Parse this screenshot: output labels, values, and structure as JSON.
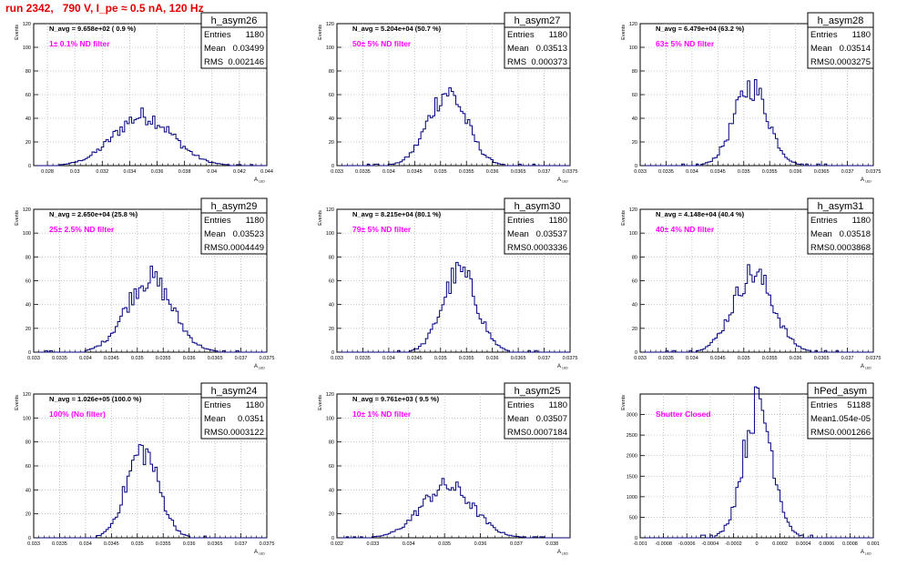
{
  "page": {
    "title": "run 2342,   790 V, I_pe ≈ 0.5 nA, 120 Hz",
    "colors": {
      "title": "#e00000",
      "histogram": "#000080",
      "note": "#ff00ff",
      "grid": "#b8b8b8"
    }
  },
  "chart_data": [
    {
      "type": "histogram",
      "name": "h_asym26",
      "nav_label": "N_avg = 9.658e+02 ( 0.9 %)",
      "note": "1± 0.1% ND filter",
      "ylabel": "Events",
      "xlabel": "A_LED",
      "xlim": [
        0.027,
        0.044
      ],
      "ylim": [
        0,
        120
      ],
      "xticks": [
        0.028,
        0.03,
        0.032,
        0.034,
        0.036,
        0.038,
        0.04,
        0.042,
        0.044
      ],
      "xtick_labels": [
        "0.028",
        "0.03",
        "0.032",
        "0.034",
        "0.036",
        "0.038",
        "0.04",
        "0.042",
        "0.044"
      ],
      "yticks": [
        0,
        20,
        40,
        60,
        80,
        100,
        120
      ],
      "stats": [
        [
          "Entries",
          "1180"
        ],
        [
          "Mean",
          "0.03499"
        ],
        [
          "RMS",
          "0.002146"
        ]
      ],
      "grid": true,
      "mean": 0.03499,
      "rms": 0.002146,
      "peak": 42
    },
    {
      "type": "histogram",
      "name": "h_asym27",
      "nav_label": "N_avg = 5.204e+04 (50.7 %)",
      "note": "50± 5% ND filter",
      "ylabel": "Events",
      "xlabel": "A_LED",
      "xlim": [
        0.033,
        0.0375
      ],
      "ylim": [
        0,
        120
      ],
      "xticks": [
        0.033,
        0.0335,
        0.034,
        0.0345,
        0.035,
        0.0355,
        0.036,
        0.0365,
        0.037,
        0.0375
      ],
      "xtick_labels": [
        "0.033",
        "0.0335",
        "0.034",
        "0.0345",
        "0.035",
        "0.0355",
        "0.036",
        "0.0365",
        "0.037",
        "0.0375"
      ],
      "yticks": [
        0,
        20,
        40,
        60,
        80,
        100,
        120
      ],
      "stats": [
        [
          "Entries",
          "1180"
        ],
        [
          "Mean",
          "0.03513"
        ],
        [
          "RMS",
          "0.000373"
        ]
      ],
      "grid": true,
      "mean": 0.03513,
      "rms": 0.000373,
      "peak": 62
    },
    {
      "type": "histogram",
      "name": "h_asym28",
      "nav_label": "N_avg = 6.479e+04 (63.2 %)",
      "note": "63± 5% ND filter",
      "ylabel": "Events",
      "xlabel": "A_LED",
      "xlim": [
        0.033,
        0.0375
      ],
      "ylim": [
        0,
        120
      ],
      "xticks": [
        0.033,
        0.0335,
        0.034,
        0.0345,
        0.035,
        0.0355,
        0.036,
        0.0365,
        0.037,
        0.0375
      ],
      "xtick_labels": [
        "0.033",
        "0.0335",
        "0.034",
        "0.0345",
        "0.035",
        "0.0355",
        "0.036",
        "0.0365",
        "0.037",
        "0.0375"
      ],
      "yticks": [
        0,
        20,
        40,
        60,
        80,
        100,
        120
      ],
      "stats": [
        [
          "Entries",
          "1180"
        ],
        [
          "Mean",
          "0.03514"
        ],
        [
          "RMS",
          "0.0003275"
        ]
      ],
      "grid": true,
      "mean": 0.03514,
      "rms": 0.0003275,
      "peak": 67
    },
    {
      "type": "histogram",
      "name": "h_asym29",
      "nav_label": "N_avg = 2.650e+04 (25.8 %)",
      "note": "25± 2.5% ND filter",
      "ylabel": "Events",
      "xlabel": "A_LED",
      "xlim": [
        0.033,
        0.0375
      ],
      "ylim": [
        0,
        120
      ],
      "xticks": [
        0.033,
        0.0335,
        0.034,
        0.0345,
        0.035,
        0.0355,
        0.036,
        0.0365,
        0.037,
        0.0375
      ],
      "xtick_labels": [
        "0.033",
        "0.0335",
        "0.034",
        "0.0345",
        "0.035",
        "0.0355",
        "0.036",
        "0.0365",
        "0.037",
        "0.0375"
      ],
      "yticks": [
        0,
        20,
        40,
        60,
        80,
        100,
        120
      ],
      "stats": [
        [
          "Entries",
          "1180"
        ],
        [
          "Mean",
          "0.03523"
        ],
        [
          "RMS",
          "0.0004449"
        ]
      ],
      "grid": true,
      "mean": 0.03523,
      "rms": 0.0004449,
      "peak": 62
    },
    {
      "type": "histogram",
      "name": "h_asym30",
      "nav_label": "N_avg = 8.215e+04 (80.1 %)",
      "note": "79± 5% ND filter",
      "ylabel": "Events",
      "xlabel": "A_LED",
      "xlim": [
        0.033,
        0.0375
      ],
      "ylim": [
        0,
        120
      ],
      "xticks": [
        0.033,
        0.0335,
        0.034,
        0.0345,
        0.035,
        0.0355,
        0.036,
        0.0365,
        0.037,
        0.0375
      ],
      "xtick_labels": [
        "0.033",
        "0.0335",
        "0.034",
        "0.0345",
        "0.035",
        "0.0355",
        "0.036",
        "0.0365",
        "0.037",
        "0.0375"
      ],
      "yticks": [
        0,
        20,
        40,
        60,
        80,
        100,
        120
      ],
      "stats": [
        [
          "Entries",
          "1180"
        ],
        [
          "Mean",
          "0.03537"
        ],
        [
          "RMS",
          "0.0003336"
        ]
      ],
      "grid": true,
      "mean": 0.03537,
      "rms": 0.0003336,
      "peak": 67
    },
    {
      "type": "histogram",
      "name": "h_asym31",
      "nav_label": "N_avg = 4.148e+04 (40.4 %)",
      "note": "40± 4% ND filter",
      "ylabel": "Events",
      "xlabel": "A_LED",
      "xlim": [
        0.033,
        0.0375
      ],
      "ylim": [
        0,
        120
      ],
      "xticks": [
        0.033,
        0.0335,
        0.034,
        0.0345,
        0.035,
        0.0355,
        0.036,
        0.0365,
        0.037,
        0.0375
      ],
      "xtick_labels": [
        "0.033",
        "0.0335",
        "0.034",
        "0.0345",
        "0.035",
        "0.0355",
        "0.036",
        "0.0365",
        "0.037",
        "0.0375"
      ],
      "yticks": [
        0,
        20,
        40,
        60,
        80,
        100,
        120
      ],
      "stats": [
        [
          "Entries",
          "1180"
        ],
        [
          "Mean",
          "0.03518"
        ],
        [
          "RMS",
          "0.0003868"
        ]
      ],
      "grid": true,
      "mean": 0.03518,
      "rms": 0.0003868,
      "peak": 66
    },
    {
      "type": "histogram",
      "name": "h_asym24",
      "nav_label": "N_avg = 1.026e+05 (100.0 %)",
      "note": "100% (No filter)",
      "ylabel": "Events",
      "xlabel": "A_LED",
      "xlim": [
        0.033,
        0.0375
      ],
      "ylim": [
        0,
        120
      ],
      "xticks": [
        0.033,
        0.0335,
        0.034,
        0.0345,
        0.035,
        0.0355,
        0.036,
        0.0365,
        0.037,
        0.0375
      ],
      "xtick_labels": [
        "0.033",
        "0.0335",
        "0.034",
        "0.0345",
        "0.035",
        "0.0355",
        "0.036",
        "0.0365",
        "0.037",
        "0.0375"
      ],
      "yticks": [
        0,
        20,
        40,
        60,
        80,
        100,
        120
      ],
      "stats": [
        [
          "Entries",
          "1180"
        ],
        [
          "Mean",
          "0.0351"
        ],
        [
          "RMS",
          "0.0003122"
        ]
      ],
      "grid": true,
      "mean": 0.0351,
      "rms": 0.0003122,
      "peak": 73
    },
    {
      "type": "histogram",
      "name": "h_asym25",
      "nav_label": "N_avg = 9.761e+03 ( 9.5 %)",
      "note": "10± 1% ND filter",
      "ylabel": "Events",
      "xlabel": "A_LED",
      "xlim": [
        0.032,
        0.0385
      ],
      "ylim": [
        0,
        120
      ],
      "xticks": [
        0.032,
        0.033,
        0.034,
        0.035,
        0.036,
        0.037,
        0.038
      ],
      "xtick_labels": [
        "0.032",
        "0.033",
        "0.034",
        "0.035",
        "0.036",
        "0.037",
        "0.038"
      ],
      "yticks": [
        0,
        20,
        40,
        60,
        80,
        100,
        120
      ],
      "stats": [
        [
          "Entries",
          "1180"
        ],
        [
          "Mean",
          "0.03507"
        ],
        [
          "RMS",
          "0.0007184"
        ]
      ],
      "grid": true,
      "mean": 0.03507,
      "rms": 0.0007184,
      "peak": 43
    },
    {
      "type": "histogram",
      "name": "hPed_asym",
      "nav_label": "",
      "note": "Shutter Closed",
      "ylabel": "Events",
      "xlabel": "A_LED",
      "xlim": [
        -0.001,
        0.001
      ],
      "ylim": [
        0,
        3500
      ],
      "xticks": [
        -0.001,
        -0.0008,
        -0.0006,
        -0.0004,
        -0.0002,
        0,
        0.0002,
        0.0004,
        0.0006,
        0.0008,
        0.001
      ],
      "xtick_labels": [
        "-0.001",
        "-0.0008",
        "-0.0006",
        "-0.0004",
        "-0.0002",
        "0",
        "0.0002",
        "0.0004",
        "0.0006",
        "0.0008",
        "0.001"
      ],
      "yticks": [
        0,
        500,
        1000,
        1500,
        2000,
        2500,
        3000
      ],
      "stats": [
        [
          "Entries",
          "51188"
        ],
        [
          "Mean",
          "1.054e-05"
        ],
        [
          "RMS",
          "0.0001266"
        ]
      ],
      "grid": true,
      "mean": 1.054e-05,
      "rms": 0.0001266,
      "peak": 3220
    }
  ]
}
